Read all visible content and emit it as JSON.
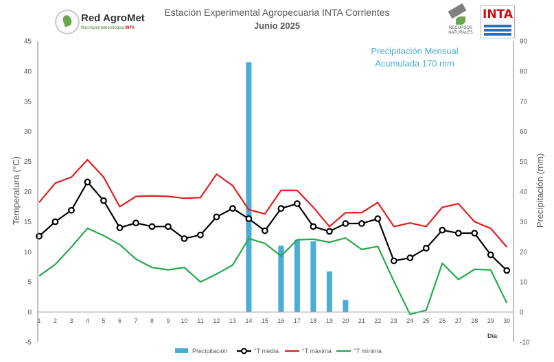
{
  "header": {
    "title": "Estación Experimental Agropecuaria INTA Corrientes",
    "subtitle": "Junio 2025"
  },
  "logos": {
    "left_name": "Red AgroMet",
    "left_sub": "Red Agrometeorológica",
    "left_badge": "INTA",
    "right_text1": "RECURSOS",
    "right_text2": "NATURALES",
    "right_brand": "INTA"
  },
  "colors": {
    "precip": "#4bacd7",
    "tmedia": "#000000",
    "tmax": "#e11d1d",
    "tmin": "#22aa4a",
    "annotation": "#4bacd7"
  },
  "chart_data": {
    "type": "bar+line",
    "xlabel": "Día",
    "ylabel_left": "Temperatura (°C)",
    "ylabel_right": "Precipitación (mm)",
    "ylim_left": [
      -5,
      45
    ],
    "ylim_right": [
      -10,
      90
    ],
    "left_ticks": [
      -5,
      0,
      5,
      10,
      15,
      20,
      25,
      30,
      35,
      40,
      45
    ],
    "right_ticks": [
      -10,
      0,
      10,
      20,
      30,
      40,
      50,
      60,
      70,
      80,
      90
    ],
    "grid": false,
    "legend_position": "bottom",
    "annotation": [
      "Precipitación Mensual",
      "Acumulada 170 mm"
    ],
    "days": [
      1,
      2,
      3,
      4,
      5,
      6,
      7,
      8,
      9,
      10,
      11,
      12,
      13,
      14,
      15,
      16,
      17,
      18,
      19,
      20,
      21,
      22,
      23,
      24,
      25,
      26,
      27,
      28,
      29,
      30
    ],
    "series": [
      {
        "name": "Precipitación",
        "kind": "bar",
        "axis": "right",
        "values": [
          0,
          0,
          0,
          0,
          0,
          0,
          0,
          0,
          0,
          0,
          0,
          0,
          0,
          83,
          0,
          22,
          24,
          23.5,
          13.5,
          4,
          0,
          0,
          0,
          0,
          0,
          0,
          0,
          0,
          0,
          0
        ]
      },
      {
        "name": "°T media",
        "kind": "line-marker",
        "axis": "left",
        "values": [
          12.6,
          15.0,
          16.9,
          21.6,
          18.5,
          14.0,
          14.8,
          14.2,
          14.2,
          12.2,
          12.8,
          15.8,
          17.2,
          15.5,
          13.5,
          17.2,
          18.0,
          14.2,
          13.4,
          14.7,
          14.7,
          15.5,
          8.5,
          9.0,
          10.6,
          13.6,
          13.1,
          13.1,
          9.5,
          6.9
        ]
      },
      {
        "name": "°T máxima",
        "kind": "line",
        "axis": "left",
        "values": [
          18.2,
          21.4,
          22.4,
          25.3,
          22.4,
          17.5,
          19.2,
          19.3,
          19.2,
          18.9,
          19.0,
          22.9,
          21.0,
          17.0,
          16.3,
          20.2,
          20.2,
          17.4,
          14.2,
          16.5,
          16.5,
          18.2,
          14.2,
          14.8,
          14.2,
          17.4,
          18.0,
          15.0,
          13.9,
          10.8
        ]
      },
      {
        "name": "°T mínima",
        "kind": "line",
        "axis": "left",
        "values": [
          6.0,
          7.9,
          10.8,
          13.9,
          12.7,
          11.2,
          8.8,
          7.4,
          7.0,
          7.4,
          5.0,
          6.3,
          7.8,
          12.2,
          11.4,
          9.3,
          12.0,
          12.1,
          11.6,
          12.3,
          10.4,
          10.9,
          5.1,
          -0.4,
          0.3,
          8.1,
          5.4,
          7.1,
          7.0,
          1.5
        ]
      }
    ]
  }
}
